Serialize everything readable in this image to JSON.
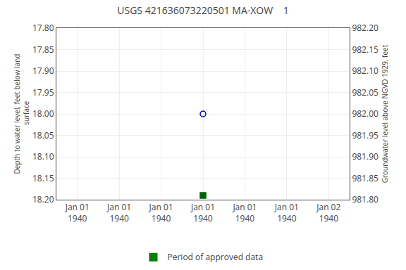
{
  "chart_data": {
    "type": "scatter",
    "title": "USGS 421636073220501 MA-XOW    1",
    "y_label": "Depth to water level, feet below land\n surface",
    "y2_label": "Groundwater level above NGVD 1929, feet",
    "categories": [
      "Jan 01\n1940",
      "Jan 01\n1940",
      "Jan 01\n1940",
      "Jan 01\n1940",
      "Jan 01\n1940",
      "Jan 01\n1940",
      "Jan 02\n1940"
    ],
    "series": [
      {
        "color": "#0000cc",
        "marker": "circle-open",
        "values": [
          null,
          null,
          null,
          18.0,
          null,
          null,
          null
        ]
      },
      {
        "color": "#006400",
        "marker": "square",
        "values": [
          null,
          null,
          null,
          18.19,
          null,
          null,
          null
        ]
      },
      {
        "name": "Period of approved data",
        "type": "bar",
        "color": "#008000",
        "axis": "y2",
        "values": [
          null,
          null,
          null,
          null,
          null,
          null,
          null
        ]
      }
    ],
    "ylim": [
      18.2,
      17.8
    ],
    "yticks": [
      {
        "value": 17.8,
        "label": "17.80"
      },
      {
        "value": 17.85,
        "label": "17.85"
      },
      {
        "value": 17.9,
        "label": "17.90"
      },
      {
        "value": 17.95,
        "label": "17.95"
      },
      {
        "value": 18.0,
        "label": "18.00"
      },
      {
        "value": 18.05,
        "label": "18.05"
      },
      {
        "value": 18.1,
        "label": "18.10"
      },
      {
        "value": 18.15,
        "label": "18.15"
      },
      {
        "value": 18.2,
        "label": "18.20"
      }
    ],
    "y2lim": [
      981.8,
      982.2
    ],
    "y2ticks": [
      {
        "value": 982.2,
        "label": "982.20"
      },
      {
        "value": 982.15,
        "label": "982.15"
      },
      {
        "value": 982.1,
        "label": "982.10"
      },
      {
        "value": 982.05,
        "label": "982.05"
      },
      {
        "value": 982.0,
        "label": "982.00"
      },
      {
        "value": 981.95,
        "label": "981.95"
      },
      {
        "value": 981.9,
        "label": "981.90"
      },
      {
        "value": 981.85,
        "label": "981.85"
      },
      {
        "value": 981.8,
        "label": "981.80"
      }
    ],
    "grid": true,
    "legend": "bottom"
  }
}
